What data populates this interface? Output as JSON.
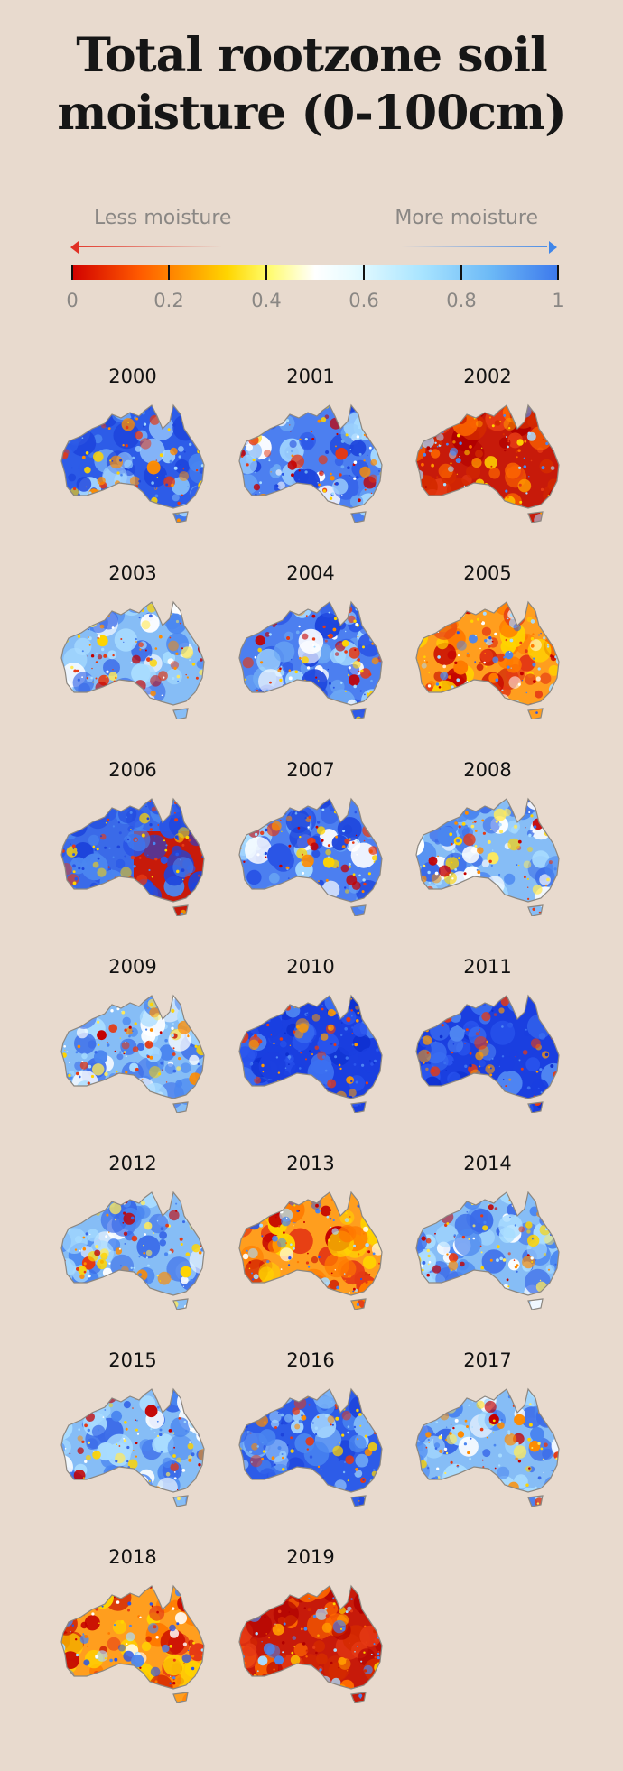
{
  "title": "Total rootzone soil moisture (0-100cm)",
  "legend": {
    "less_label": "Less moisture",
    "more_label": "More moisture",
    "ticks": [
      "0",
      "0.2",
      "0.4",
      "0.6",
      "0.8",
      "1"
    ],
    "colors": [
      "#d10000",
      "#ff5a00",
      "#ff9c00",
      "#ffd500",
      "#fffb66",
      "#ffffff",
      "#e6fbff",
      "#a8e4ff",
      "#6cb9f6",
      "#3c78ec"
    ]
  },
  "panels": [
    {
      "year": "2000",
      "tone": "wet"
    },
    {
      "year": "2001",
      "tone": "mixed-wet"
    },
    {
      "year": "2002",
      "tone": "very-dry"
    },
    {
      "year": "2003",
      "tone": "mixed"
    },
    {
      "year": "2004",
      "tone": "mixed-wet"
    },
    {
      "year": "2005",
      "tone": "dry"
    },
    {
      "year": "2006",
      "tone": "split-dry-east"
    },
    {
      "year": "2007",
      "tone": "mixed-wet"
    },
    {
      "year": "2008",
      "tone": "mixed"
    },
    {
      "year": "2009",
      "tone": "mixed"
    },
    {
      "year": "2010",
      "tone": "very-wet"
    },
    {
      "year": "2011",
      "tone": "very-wet"
    },
    {
      "year": "2012",
      "tone": "mixed"
    },
    {
      "year": "2013",
      "tone": "dry"
    },
    {
      "year": "2014",
      "tone": "mixed"
    },
    {
      "year": "2015",
      "tone": "mixed"
    },
    {
      "year": "2016",
      "tone": "wet"
    },
    {
      "year": "2017",
      "tone": "mixed"
    },
    {
      "year": "2018",
      "tone": "dry"
    },
    {
      "year": "2019",
      "tone": "very-dry"
    }
  ]
}
